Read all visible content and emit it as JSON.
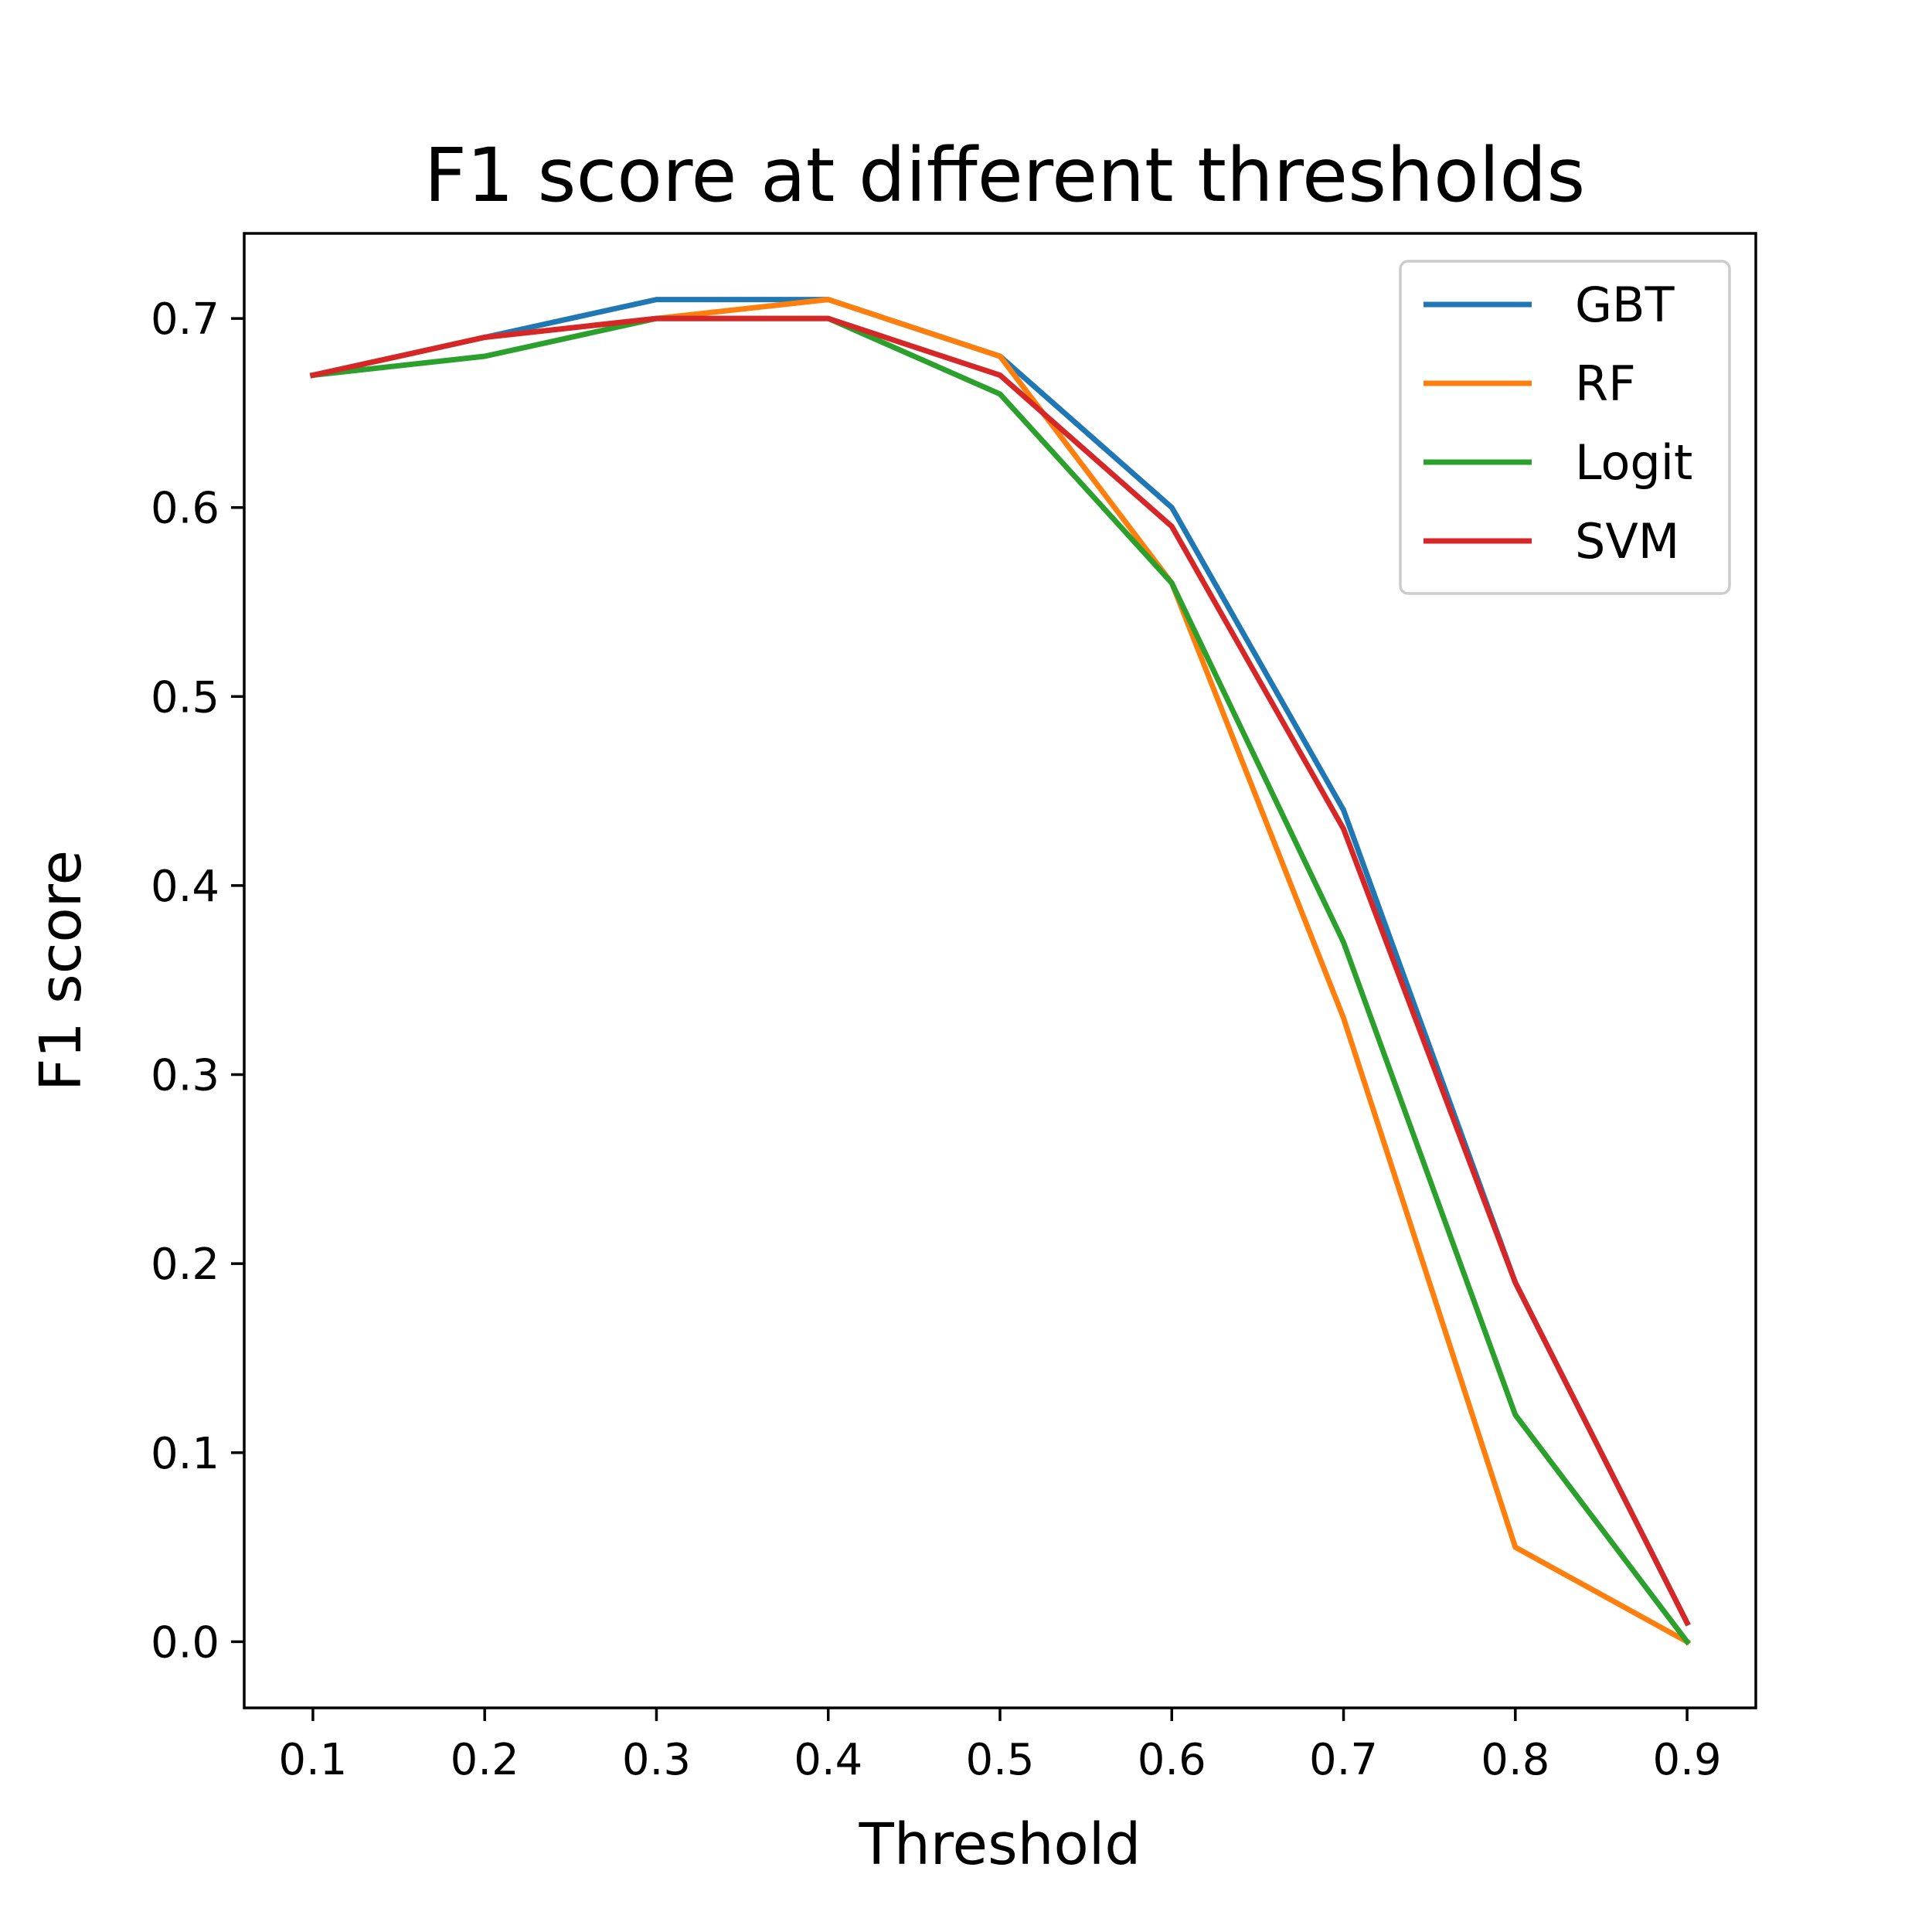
{
  "chart_data": {
    "type": "line",
    "title": "F1 score at different thresholds",
    "xlabel": "Threshold",
    "ylabel": "F1 score",
    "x": [
      0.1,
      0.2,
      0.3,
      0.4,
      0.5,
      0.6,
      0.7,
      0.8,
      0.9
    ],
    "xticks": [
      "0.1",
      "0.2",
      "0.3",
      "0.4",
      "0.5",
      "0.6",
      "0.7",
      "0.8",
      "0.9"
    ],
    "yticks": [
      "0.0",
      "0.1",
      "0.2",
      "0.3",
      "0.4",
      "0.5",
      "0.6",
      "0.7"
    ],
    "ytick_values": [
      0.0,
      0.1,
      0.2,
      0.3,
      0.4,
      0.5,
      0.6,
      0.7
    ],
    "xlim": [
      0.06,
      0.94
    ],
    "ylim": [
      -0.035,
      0.745
    ],
    "grid": false,
    "legend_position": "top-right",
    "series": [
      {
        "name": "GBT",
        "color": "#1f77b4",
        "values": [
          0.67,
          0.69,
          0.71,
          0.71,
          0.68,
          0.6,
          0.44,
          0.19,
          0.01
        ]
      },
      {
        "name": "RF",
        "color": "#ff7f0e",
        "values": [
          0.67,
          0.69,
          0.7,
          0.71,
          0.68,
          0.56,
          0.33,
          0.05,
          0.0
        ]
      },
      {
        "name": "Logit",
        "color": "#2ca02c",
        "values": [
          0.67,
          0.68,
          0.7,
          0.7,
          0.66,
          0.56,
          0.37,
          0.12,
          0.0
        ]
      },
      {
        "name": "SVM",
        "color": "#d62728",
        "values": [
          0.67,
          0.69,
          0.7,
          0.7,
          0.67,
          0.59,
          0.43,
          0.19,
          0.01
        ]
      }
    ]
  }
}
